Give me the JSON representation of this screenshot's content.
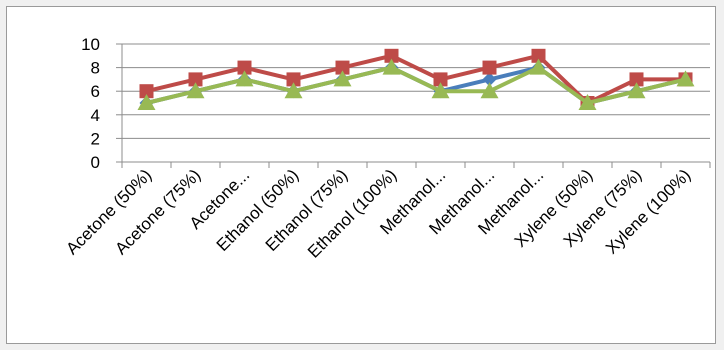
{
  "chart_data": {
    "type": "line",
    "categories": [
      "Acetone (50%)",
      "Acetone (75%)",
      "Acetone...",
      "Ethanol (50%)",
      "Ethanol (75%)",
      "Ethanol (100%)",
      "Methanol...",
      "Methanol...",
      "Methanol...",
      "Xylene (50%)",
      "Xylene (75%)",
      "Xylene (100%)"
    ],
    "series": [
      {
        "values": [
          5,
          6,
          7,
          6,
          7,
          8,
          6,
          7,
          8,
          5,
          6,
          7
        ],
        "color": "#4a7ebb",
        "marker": "diamond"
      },
      {
        "values": [
          6,
          7,
          8,
          7,
          8,
          9,
          7,
          8,
          9,
          5,
          7,
          7
        ],
        "color": "#be4b48",
        "marker": "square"
      },
      {
        "values": [
          5,
          6,
          7,
          6,
          7,
          8,
          6,
          6,
          8,
          5,
          6,
          7
        ],
        "color": "#98b954",
        "marker": "triangle"
      }
    ],
    "y_ticks": [
      "0",
      "2",
      "4",
      "6",
      "8",
      "10"
    ],
    "ylim": [
      0,
      10
    ],
    "grid": true,
    "legend": "none",
    "title": "",
    "xlabel": "",
    "ylabel": ""
  }
}
